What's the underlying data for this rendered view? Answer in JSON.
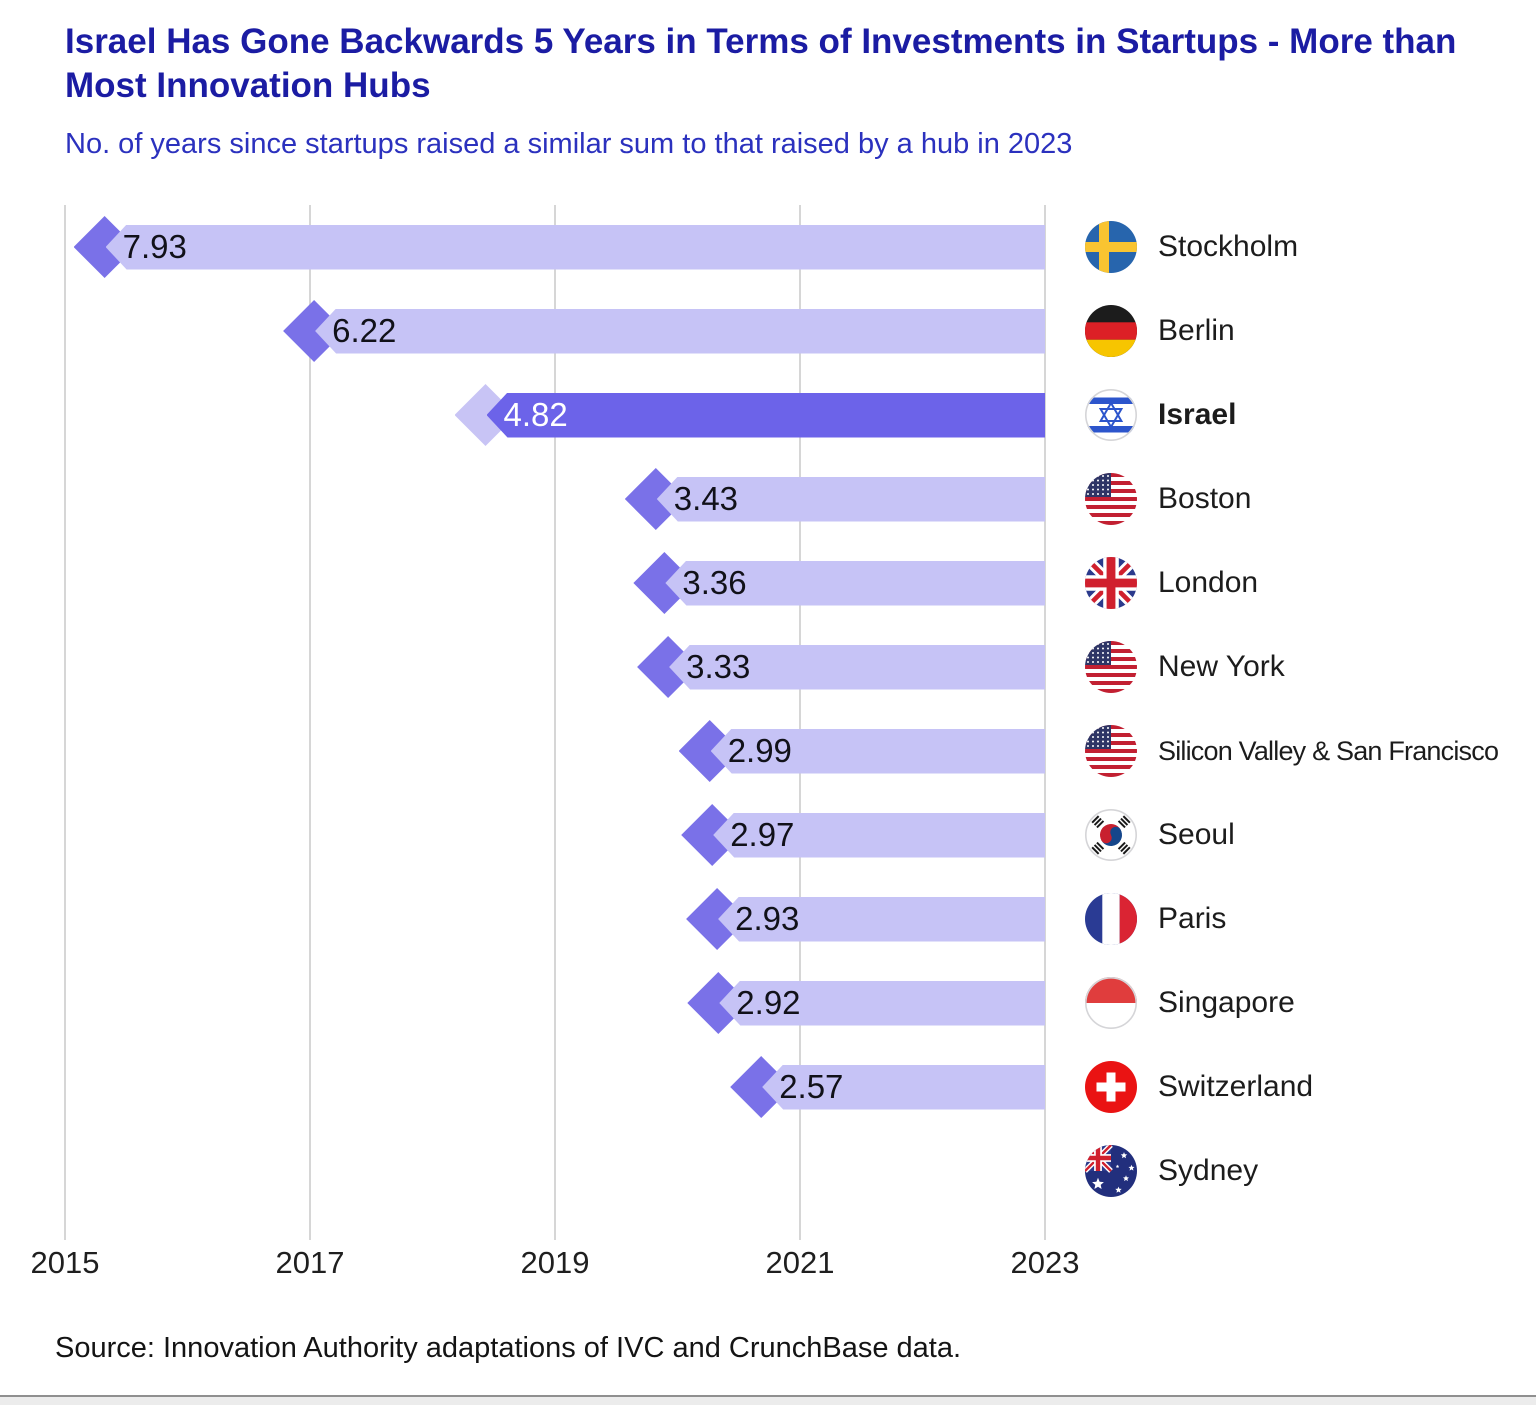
{
  "title": "Israel Has Gone Backwards 5 Years in Terms of Investments in Startups - More than Most Innovation Hubs",
  "subtitle": "No. of years since startups raised a similar sum to that raised by a hub in 2023",
  "source": "Source: Innovation Authority adaptations of IVC and CrunchBase data.",
  "colors": {
    "title_blue": "#1b1ca3",
    "subtitle_blue": "#2b31be",
    "bar_light": "#c6c3f6",
    "arrow_dark": "#7a71e8",
    "highlight_bar": "#6c63e9",
    "highlight_arrow": "#c8c4f5",
    "gridline": "#d6d6d6"
  },
  "chart_data": {
    "type": "bar",
    "orientation": "horizontal",
    "unit": "years",
    "title": "Israel Has Gone Backwards 5 Years in Terms of Investments in Startups - More than Most Innovation Hubs",
    "subtitle": "No. of years since startups raised a similar sum to that raised by a hub in 2023",
    "x_axis": {
      "ticks": [
        2015,
        2017,
        2019,
        2021,
        2023
      ],
      "min": 2015,
      "max": 2023
    },
    "bars_anchor": 2023,
    "grid": true,
    "labels_position": "right",
    "rows": [
      {
        "label": "Stockholm",
        "flag": "sweden",
        "value": 7.93,
        "highlight": false
      },
      {
        "label": "Berlin",
        "flag": "germany",
        "value": 6.22,
        "highlight": false
      },
      {
        "label": "Israel",
        "flag": "israel",
        "value": 4.82,
        "highlight": true
      },
      {
        "label": "Boston",
        "flag": "usa",
        "value": 3.43,
        "highlight": false
      },
      {
        "label": "London",
        "flag": "uk",
        "value": 3.36,
        "highlight": false
      },
      {
        "label": "New York",
        "flag": "usa",
        "value": 3.33,
        "highlight": false
      },
      {
        "label": "Silicon Valley & San Francisco",
        "flag": "usa",
        "value": 2.99,
        "highlight": false
      },
      {
        "label": "Seoul",
        "flag": "korea",
        "value": 2.97,
        "highlight": false
      },
      {
        "label": "Paris",
        "flag": "france",
        "value": 2.93,
        "highlight": false
      },
      {
        "label": "Singapore",
        "flag": "singapore",
        "value": 2.92,
        "highlight": false
      },
      {
        "label": "Switzerland",
        "flag": "switzerland",
        "value": 2.57,
        "highlight": false
      },
      {
        "label": "Sydney",
        "flag": "australia",
        "value": null,
        "highlight": false
      }
    ]
  }
}
